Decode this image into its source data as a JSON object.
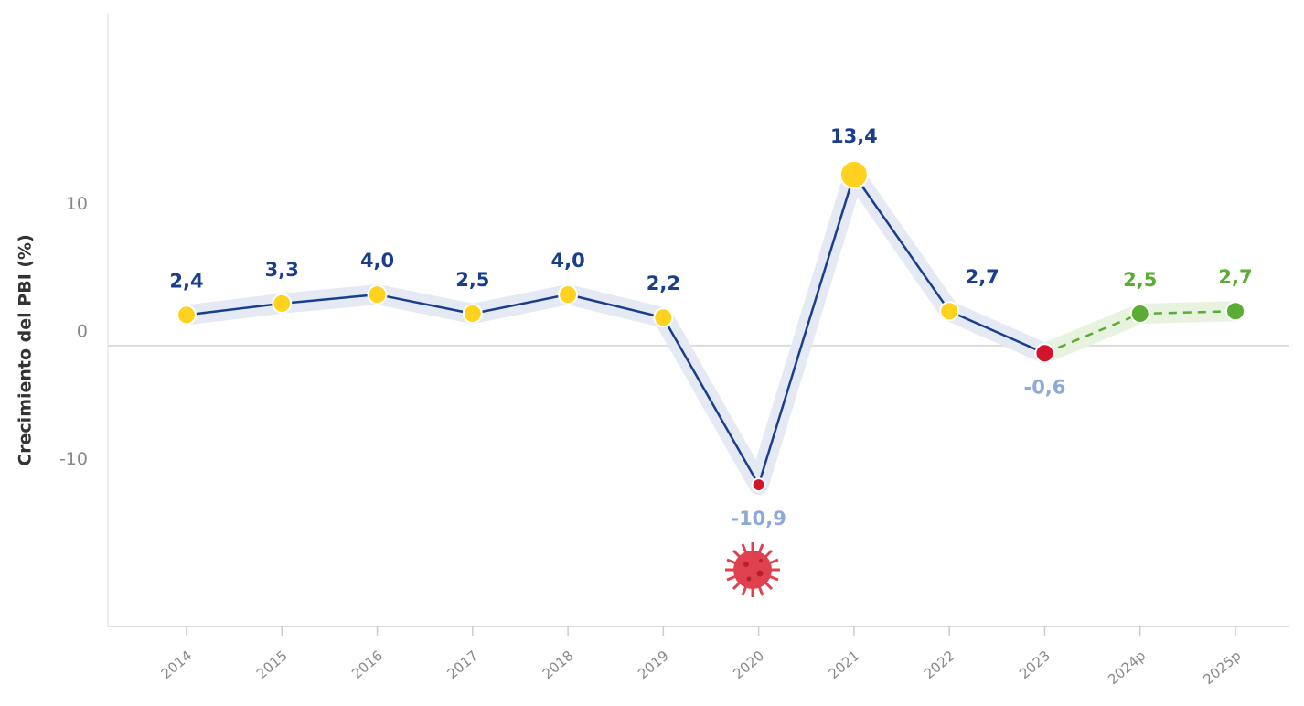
{
  "chart_data": {
    "type": "line",
    "y_label": "Crecimiento del PBI (%)",
    "categories": [
      "2014",
      "2015",
      "2016",
      "2017",
      "2018",
      "2019",
      "2020",
      "2021",
      "2022",
      "2023",
      "2024p",
      "2025p"
    ],
    "series": [
      {
        "color": "#1a3e8c",
        "halo_color": "#e4e9f4",
        "label_color": "#1a3e8c",
        "negative_label_color": "#8ea8d8",
        "marker_colors": [
          "#ffd21f",
          "#ffd21f",
          "#ffd21f",
          "#ffd21f",
          "#ffd21f",
          "#ffd21f",
          "#d4132c",
          "#ffd21f",
          "#ffd21f",
          "#d4132c",
          null,
          null
        ],
        "values": [
          2.4,
          3.3,
          4.0,
          2.5,
          4.0,
          2.2,
          -10.9,
          13.4,
          2.7,
          -0.6,
          null,
          null
        ],
        "value_labels": [
          "2,4",
          "3,3",
          "4,0",
          "2,5",
          "4,0",
          "2,2",
          "-10,9",
          "13,4",
          "2,7",
          "-0,6",
          null,
          null
        ]
      },
      {
        "color": "#5aac32",
        "halo_color": "#e8f3df",
        "label_color": "#5aac32",
        "dashed": true,
        "marker_colors": [
          null,
          null,
          null,
          null,
          null,
          null,
          null,
          null,
          null,
          null,
          "#5aac32",
          "#5aac32"
        ],
        "values": [
          null,
          null,
          null,
          null,
          null,
          null,
          null,
          null,
          null,
          null,
          2.5,
          2.7
        ],
        "value_labels": [
          null,
          null,
          null,
          null,
          null,
          null,
          null,
          null,
          null,
          null,
          "2,5",
          "2,7"
        ]
      }
    ],
    "ylim": [
      -22,
      26
    ],
    "yticks": [
      -10,
      0,
      10
    ]
  }
}
